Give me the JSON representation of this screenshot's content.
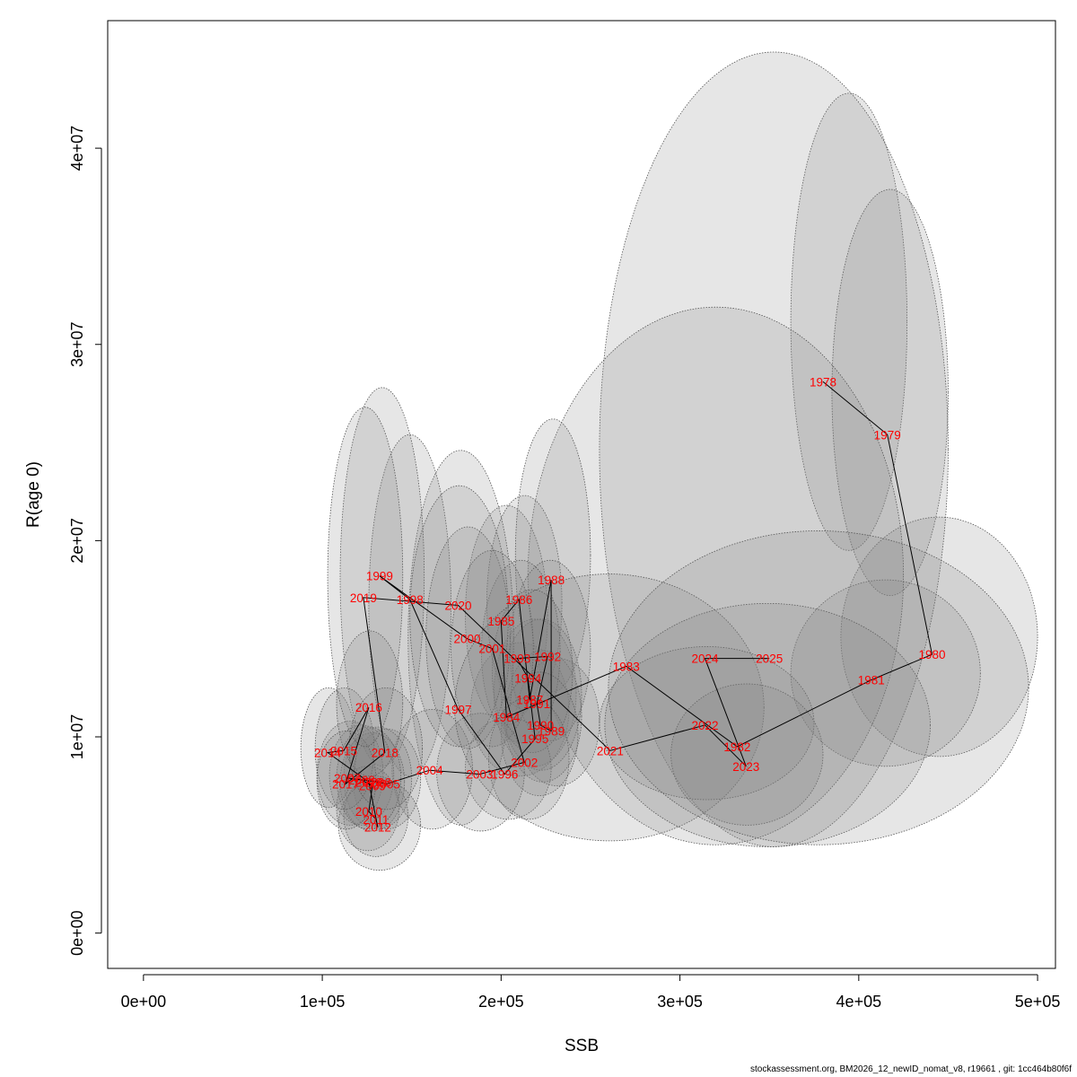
{
  "chart_data": {
    "type": "scatter",
    "xlabel": "SSB",
    "ylabel": "R(age 0)",
    "xlim": [
      -20000,
      510000
    ],
    "ylim": [
      -1800000,
      46500000
    ],
    "x_ticks": [
      0,
      100000,
      200000,
      300000,
      400000,
      500000
    ],
    "x_tick_labels": [
      "0e+00",
      "1e+05",
      "2e+05",
      "3e+05",
      "4e+05",
      "5e+05"
    ],
    "y_ticks": [
      0,
      10000000,
      20000000,
      30000000,
      40000000
    ],
    "y_tick_labels": [
      "0e+00",
      "1e+07",
      "2e+07",
      "3e+07",
      "4e+07"
    ],
    "grid": false,
    "legend": "none",
    "colors": {
      "label": "#ff0000",
      "line": "#000000",
      "ellipse_fill": "#808080",
      "ellipse_stroke": "#555555"
    },
    "points": [
      {
        "year": "1978",
        "ssb": 380000,
        "r": 28100000
      },
      {
        "year": "1979",
        "ssb": 416000,
        "r": 25400000
      },
      {
        "year": "1980",
        "ssb": 441000,
        "r": 14200000
      },
      {
        "year": "1981",
        "ssb": 407000,
        "r": 12900000
      },
      {
        "year": "1982",
        "ssb": 332000,
        "r": 9500000
      },
      {
        "year": "1983",
        "ssb": 270000,
        "r": 13600000
      },
      {
        "year": "1984",
        "ssb": 203000,
        "r": 11000000
      },
      {
        "year": "1985",
        "ssb": 200000,
        "r": 15900000
      },
      {
        "year": "1986",
        "ssb": 210000,
        "r": 17000000
      },
      {
        "year": "1987",
        "ssb": 216000,
        "r": 11900000
      },
      {
        "year": "1988",
        "ssb": 228000,
        "r": 18000000
      },
      {
        "year": "1989",
        "ssb": 228000,
        "r": 10300000
      },
      {
        "year": "1990",
        "ssb": 222000,
        "r": 10600000
      },
      {
        "year": "1991",
        "ssb": 220000,
        "r": 11700000
      },
      {
        "year": "1992",
        "ssb": 226000,
        "r": 14100000
      },
      {
        "year": "1993",
        "ssb": 209000,
        "r": 14000000
      },
      {
        "year": "1994",
        "ssb": 215000,
        "r": 13000000
      },
      {
        "year": "1995",
        "ssb": 219000,
        "r": 9900000
      },
      {
        "year": "1996",
        "ssb": 202000,
        "r": 8100000
      },
      {
        "year": "1997",
        "ssb": 176000,
        "r": 11400000
      },
      {
        "year": "1998",
        "ssb": 149000,
        "r": 17000000
      },
      {
        "year": "1999",
        "ssb": 132000,
        "r": 18200000
      },
      {
        "year": "2000",
        "ssb": 181000,
        "r": 15000000
      },
      {
        "year": "2001",
        "ssb": 195000,
        "r": 14500000
      },
      {
        "year": "2002",
        "ssb": 213000,
        "r": 8700000
      },
      {
        "year": "2003",
        "ssb": 188000,
        "r": 8100000
      },
      {
        "year": "2004",
        "ssb": 160000,
        "r": 8300000
      },
      {
        "year": "2005",
        "ssb": 136000,
        "r": 7600000
      },
      {
        "year": "2006",
        "ssb": 131000,
        "r": 7700000
      },
      {
        "year": "2007",
        "ssb": 114000,
        "r": 7900000
      },
      {
        "year": "2008",
        "ssb": 122000,
        "r": 7800000
      },
      {
        "year": "2009",
        "ssb": 128000,
        "r": 7500000
      },
      {
        "year": "2010",
        "ssb": 126000,
        "r": 6200000
      },
      {
        "year": "2011",
        "ssb": 130000,
        "r": 5800000
      },
      {
        "year": "2012",
        "ssb": 131000,
        "r": 5400000
      },
      {
        "year": "2013",
        "ssb": 126000,
        "r": 7700000
      },
      {
        "year": "2014",
        "ssb": 103000,
        "r": 9200000
      },
      {
        "year": "2015",
        "ssb": 112000,
        "r": 9300000
      },
      {
        "year": "2016",
        "ssb": 126000,
        "r": 11500000
      },
      {
        "year": "2017",
        "ssb": 113000,
        "r": 7600000
      },
      {
        "year": "2018",
        "ssb": 135000,
        "r": 9200000
      },
      {
        "year": "2019",
        "ssb": 123000,
        "r": 17100000
      },
      {
        "year": "2020",
        "ssb": 176000,
        "r": 16700000
      },
      {
        "year": "2021",
        "ssb": 261000,
        "r": 9300000
      },
      {
        "year": "2022",
        "ssb": 314000,
        "r": 10600000
      },
      {
        "year": "2023",
        "ssb": 337000,
        "r": 8500000
      },
      {
        "year": "2024",
        "ssb": 314000,
        "r": 14000000
      },
      {
        "year": "2025",
        "ssb": 350000,
        "r": 14000000
      }
    ],
    "ellipses": [
      {
        "year": "1978",
        "ssb_min": 362000,
        "ssb_max": 427000,
        "r_min": 19500000,
        "r_max": 42800000
      },
      {
        "year": "1979",
        "ssb_min": 385000,
        "ssb_max": 450000,
        "r_min": 17200000,
        "r_max": 37900000
      },
      {
        "year": "1980",
        "ssb_min": 390000,
        "ssb_max": 500000,
        "r_min": 9000000,
        "r_max": 21200000
      },
      {
        "year": "1981",
        "ssb_min": 362000,
        "ssb_max": 468000,
        "r_min": 8500000,
        "r_max": 18000000
      },
      {
        "year": "1982",
        "ssb_min": 255000,
        "ssb_max": 450000,
        "r_min": 4400000,
        "r_max": 44900000
      },
      {
        "year": "1983",
        "ssb_min": 215000,
        "ssb_max": 425000,
        "r_min": 4500000,
        "r_max": 31900000
      },
      {
        "year": "1984",
        "ssb_min": 183000,
        "ssb_max": 238000,
        "r_min": 8000000,
        "r_max": 14800000
      },
      {
        "year": "1985",
        "ssb_min": 180000,
        "ssb_max": 226000,
        "r_min": 10600000,
        "r_max": 21800000
      },
      {
        "year": "1986",
        "ssb_min": 192000,
        "ssb_max": 234000,
        "r_min": 11400000,
        "r_max": 22300000
      },
      {
        "year": "1987",
        "ssb_min": 196000,
        "ssb_max": 242000,
        "r_min": 8500000,
        "r_max": 16000000
      },
      {
        "year": "1988",
        "ssb_min": 208000,
        "ssb_max": 250000,
        "r_min": 12300000,
        "r_max": 26200000
      },
      {
        "year": "1989",
        "ssb_min": 208000,
        "ssb_max": 255000,
        "r_min": 7500000,
        "r_max": 14000000
      },
      {
        "year": "1990",
        "ssb_min": 202000,
        "ssb_max": 245000,
        "r_min": 7700000,
        "r_max": 14400000
      },
      {
        "year": "1991",
        "ssb_min": 200000,
        "ssb_max": 245000,
        "r_min": 8300000,
        "r_max": 16000000
      },
      {
        "year": "1992",
        "ssb_min": 205000,
        "ssb_max": 250000,
        "r_min": 9800000,
        "r_max": 19000000
      },
      {
        "year": "1993",
        "ssb_min": 189000,
        "ssb_max": 233000,
        "r_min": 9700000,
        "r_max": 19000000
      },
      {
        "year": "1994",
        "ssb_min": 195000,
        "ssb_max": 240000,
        "r_min": 9200000,
        "r_max": 17500000
      },
      {
        "year": "1995",
        "ssb_min": 200000,
        "ssb_max": 243000,
        "r_min": 7000000,
        "r_max": 13300000
      },
      {
        "year": "1996",
        "ssb_min": 180000,
        "ssb_max": 228000,
        "r_min": 5800000,
        "r_max": 11000000
      },
      {
        "year": "1997",
        "ssb_min": 148000,
        "ssb_max": 207000,
        "r_min": 5500000,
        "r_max": 24600000
      },
      {
        "year": "1998",
        "ssb_min": 126000,
        "ssb_max": 172000,
        "r_min": 8000000,
        "r_max": 25400000
      },
      {
        "year": "1999",
        "ssb_min": 110000,
        "ssb_max": 157000,
        "r_min": 8500000,
        "r_max": 27800000
      },
      {
        "year": "2000",
        "ssb_min": 158000,
        "ssb_max": 205000,
        "r_min": 9400000,
        "r_max": 20700000
      },
      {
        "year": "2001",
        "ssb_min": 172000,
        "ssb_max": 218000,
        "r_min": 9500000,
        "r_max": 19500000
      },
      {
        "year": "2002",
        "ssb_min": 193000,
        "ssb_max": 238000,
        "r_min": 5800000,
        "r_max": 12000000
      },
      {
        "year": "2003",
        "ssb_min": 164000,
        "ssb_max": 213000,
        "r_min": 5200000,
        "r_max": 11200000
      },
      {
        "year": "2004",
        "ssb_min": 139000,
        "ssb_max": 184000,
        "r_min": 5300000,
        "r_max": 11400000
      },
      {
        "year": "2005",
        "ssb_min": 117000,
        "ssb_max": 155000,
        "r_min": 5300000,
        "r_max": 10400000
      },
      {
        "year": "2006",
        "ssb_min": 112000,
        "ssb_max": 150000,
        "r_min": 5300000,
        "r_max": 10500000
      },
      {
        "year": "2007",
        "ssb_min": 97000,
        "ssb_max": 134000,
        "r_min": 5500000,
        "r_max": 10800000
      },
      {
        "year": "2008",
        "ssb_min": 104000,
        "ssb_max": 140000,
        "r_min": 5500000,
        "r_max": 10600000
      },
      {
        "year": "2009",
        "ssb_min": 110000,
        "ssb_max": 146000,
        "r_min": 5200000,
        "r_max": 10200000
      },
      {
        "year": "2010",
        "ssb_min": 108000,
        "ssb_max": 143000,
        "r_min": 4200000,
        "r_max": 8500000
      },
      {
        "year": "2011",
        "ssb_min": 112000,
        "ssb_max": 148000,
        "r_min": 3900000,
        "r_max": 8000000
      },
      {
        "year": "2012",
        "ssb_min": 109000,
        "ssb_max": 155000,
        "r_min": 3200000,
        "r_max": 7800000
      },
      {
        "year": "2013",
        "ssb_min": 108000,
        "ssb_max": 144000,
        "r_min": 5300000,
        "r_max": 10500000
      },
      {
        "year": "2014",
        "ssb_min": 88000,
        "ssb_max": 119000,
        "r_min": 6400000,
        "r_max": 12500000
      },
      {
        "year": "2015",
        "ssb_min": 96000,
        "ssb_max": 129000,
        "r_min": 6300000,
        "r_max": 12500000
      },
      {
        "year": "2016",
        "ssb_min": 108000,
        "ssb_max": 145000,
        "r_min": 8000000,
        "r_max": 15400000
      },
      {
        "year": "2017",
        "ssb_min": 97000,
        "ssb_max": 130000,
        "r_min": 5300000,
        "r_max": 10300000
      },
      {
        "year": "2018",
        "ssb_min": 115000,
        "ssb_max": 156000,
        "r_min": 6300000,
        "r_max": 12500000
      },
      {
        "year": "2019",
        "ssb_min": 103000,
        "ssb_max": 145000,
        "r_min": 9500000,
        "r_max": 26800000
      },
      {
        "year": "2020",
        "ssb_min": 149000,
        "ssb_max": 204000,
        "r_min": 9500000,
        "r_max": 22800000
      },
      {
        "year": "2021",
        "ssb_min": 174000,
        "ssb_max": 347000,
        "r_min": 4700000,
        "r_max": 18300000
      },
      {
        "year": "2022",
        "ssb_min": 255000,
        "ssb_max": 375000,
        "r_min": 6800000,
        "r_max": 14600000
      },
      {
        "year": "2023",
        "ssb_min": 295000,
        "ssb_max": 380000,
        "r_min": 5500000,
        "r_max": 12700000
      },
      {
        "year": "2024",
        "ssb_min": 258000,
        "ssb_max": 440000,
        "r_min": 4400000,
        "r_max": 16800000
      },
      {
        "year": "2025",
        "ssb_min": 260000,
        "ssb_max": 495000,
        "r_min": 4500000,
        "r_max": 20500000
      }
    ]
  },
  "footer": {
    "caption": "stockassessment.org, BM2026_12_newID_nomat_v8, r19661 , git: 1cc464b80f6f"
  }
}
